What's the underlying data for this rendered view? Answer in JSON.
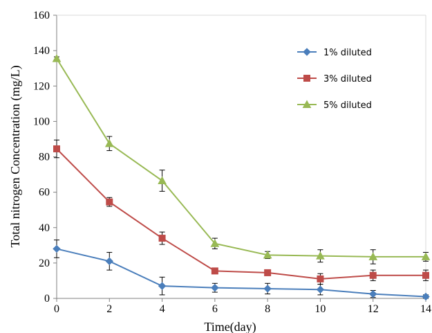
{
  "chart_data": {
    "type": "line",
    "xlabel": "Time(day)",
    "ylabel": "Total nitrogen Concentration (mg/L)",
    "xlim": [
      0,
      14
    ],
    "ylim": [
      0,
      160
    ],
    "x_ticks": [
      "0",
      "2",
      "4",
      "6",
      "8",
      "10",
      "12",
      "14"
    ],
    "y_ticks": [
      "0",
      "20",
      "40",
      "60",
      "80",
      "100",
      "120",
      "140",
      "160"
    ],
    "x": [
      0,
      2,
      4,
      6,
      8,
      10,
      12,
      14
    ],
    "grid": false,
    "legend_position": "top-right",
    "series": [
      {
        "name": "1% diluted",
        "color": "#4a7ebb",
        "marker": "diamond",
        "values": [
          28,
          21,
          7,
          6,
          5.5,
          5,
          2.5,
          1
        ],
        "errors": [
          5,
          5,
          5,
          2.5,
          3,
          3,
          2,
          1
        ]
      },
      {
        "name": "3% diluted",
        "color": "#be4b48",
        "marker": "square",
        "values": [
          84.5,
          54.5,
          34,
          15.5,
          14.5,
          11,
          13,
          13
        ],
        "errors": [
          5,
          2.5,
          3.5,
          1,
          1,
          3,
          3,
          3
        ]
      },
      {
        "name": "5% diluted",
        "color": "#98b954",
        "marker": "triangle",
        "values": [
          135.5,
          87.5,
          66.5,
          31,
          24.5,
          24,
          23.5,
          23.5
        ],
        "errors": [
          1,
          4,
          6,
          3,
          2,
          3.5,
          4,
          2.5
        ]
      }
    ]
  }
}
